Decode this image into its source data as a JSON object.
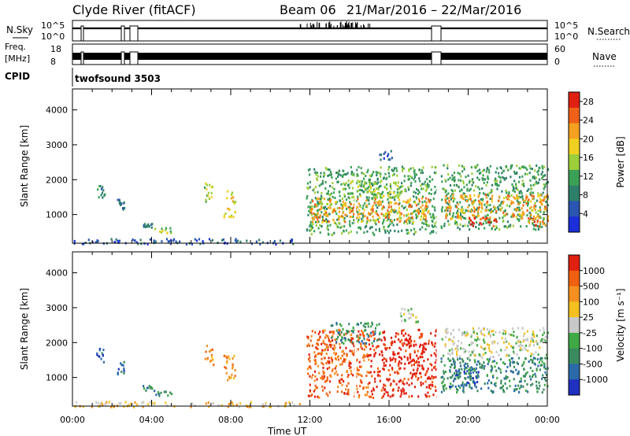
{
  "header": {
    "station": "Clyde River (fitACF)",
    "beam": "Beam 06",
    "date_range": "21/Mar/2016 – 22/Mar/2016"
  },
  "top_panels": {
    "nsky_label": "N.Sky",
    "nsky_ticks": [
      "10^5",
      "10^0"
    ],
    "nsearch_label": "N.Search",
    "nsearch_ticks": [
      "10^5",
      "10^0"
    ],
    "freq_label": "Freq.",
    "freq_unit": "[MHz]",
    "freq_ticks": [
      "18",
      "8"
    ],
    "nave_label": "Nave",
    "nave_ticks": [
      "60",
      "0"
    ],
    "cpid_label": "CPID",
    "cpid_value": "twofsound 3503"
  },
  "chart_data": [
    {
      "type": "heatmap",
      "name": "power",
      "xlabel": "Time UT",
      "ylabel": "Slant Range [km]",
      "x_ticks": [
        "00:00",
        "04:00",
        "08:00",
        "12:00",
        "16:00",
        "20:00",
        "00:00"
      ],
      "xlim_hours": [
        0,
        24
      ],
      "y_ticks": [
        1000,
        2000,
        3000,
        4000
      ],
      "ylim": [
        180,
        4600
      ],
      "colorbar": {
        "label": "Power [dB]",
        "ticks": [
          4,
          8,
          12,
          16,
          20,
          24,
          28
        ],
        "range": [
          0,
          30
        ],
        "colors": [
          "#1a2fd9",
          "#2a55b0",
          "#2e7f6a",
          "#3aa055",
          "#9ccf3a",
          "#f0d020",
          "#f5a020",
          "#f06018",
          "#e02010"
        ]
      },
      "regions": [
        {
          "t0": 1.2,
          "t1": 1.6,
          "r0": 1450,
          "r1": 1850,
          "level": 2
        },
        {
          "t0": 2.2,
          "t1": 2.6,
          "r0": 1100,
          "r1": 1500,
          "level": 2
        },
        {
          "t0": 3.5,
          "t1": 4.0,
          "r0": 650,
          "r1": 800,
          "level": 2
        },
        {
          "t0": 4.1,
          "t1": 5.0,
          "r0": 500,
          "r1": 700,
          "level": 4
        },
        {
          "t0": 6.6,
          "t1": 7.1,
          "r0": 1350,
          "r1": 1950,
          "level": 4
        },
        {
          "t0": 7.6,
          "t1": 8.2,
          "r0": 950,
          "r1": 1700,
          "level": 5
        },
        {
          "t0": 0.0,
          "t1": 11.5,
          "r0": 180,
          "r1": 330,
          "level": 1
        },
        {
          "t0": 11.8,
          "t1": 18.4,
          "r0": 450,
          "r1": 2400,
          "level": 3
        },
        {
          "t0": 12.0,
          "t1": 18.0,
          "r0": 800,
          "r1": 1500,
          "level": 6
        },
        {
          "t0": 13.5,
          "t1": 16.5,
          "r0": 1500,
          "r1": 2000,
          "level": 4
        },
        {
          "t0": 15.5,
          "t1": 16.2,
          "r0": 2600,
          "r1": 2900,
          "level": 1
        },
        {
          "t0": 18.6,
          "t1": 24.0,
          "r0": 600,
          "r1": 2450,
          "level": 3
        },
        {
          "t0": 18.8,
          "t1": 24.0,
          "r0": 900,
          "r1": 1600,
          "level": 6
        },
        {
          "t0": 20.0,
          "t1": 21.5,
          "r0": 700,
          "r1": 950,
          "level": 8
        },
        {
          "t0": 23.0,
          "t1": 24.0,
          "r0": 700,
          "r1": 1000,
          "level": 7
        }
      ]
    },
    {
      "type": "heatmap",
      "name": "velocity",
      "xlabel": "Time UT",
      "ylabel": "Slant Range [km]",
      "x_ticks": [
        "00:00",
        "04:00",
        "08:00",
        "12:00",
        "16:00",
        "20:00",
        "00:00"
      ],
      "xlim_hours": [
        0,
        24
      ],
      "y_ticks": [
        1000,
        2000,
        3000,
        4000
      ],
      "ylim": [
        180,
        4600
      ],
      "colorbar": {
        "label": "Velocity [m s⁻¹]",
        "ticks": [
          "1000",
          "500",
          "100",
          "25",
          "-25",
          "-100",
          "-500",
          "-1000"
        ],
        "colors": [
          "#2030c0",
          "#2a6aa8",
          "#3a8a60",
          "#3faa45",
          "#c8c8c8",
          "#f5c020",
          "#f59020",
          "#f06010",
          "#e02010"
        ]
      },
      "regions": [
        {
          "t0": 1.2,
          "t1": 1.6,
          "r0": 1450,
          "r1": 1850,
          "level": 1
        },
        {
          "t0": 2.2,
          "t1": 2.6,
          "r0": 1100,
          "r1": 1500,
          "level": 1
        },
        {
          "t0": 3.5,
          "t1": 4.0,
          "r0": 650,
          "r1": 800,
          "level": 2
        },
        {
          "t0": 4.1,
          "t1": 5.0,
          "r0": 500,
          "r1": 700,
          "level": 2
        },
        {
          "t0": 6.6,
          "t1": 7.1,
          "r0": 1350,
          "r1": 1950,
          "level": 6
        },
        {
          "t0": 7.6,
          "t1": 8.2,
          "r0": 950,
          "r1": 1700,
          "level": 6
        },
        {
          "t0": 0.0,
          "t1": 11.5,
          "r0": 180,
          "r1": 330,
          "level": 5
        },
        {
          "t0": 11.8,
          "t1": 15.0,
          "r0": 450,
          "r1": 2400,
          "level": 7
        },
        {
          "t0": 15.0,
          "t1": 18.4,
          "r0": 450,
          "r1": 2400,
          "level": 8
        },
        {
          "t0": 13.0,
          "t1": 15.5,
          "r0": 2000,
          "r1": 2600,
          "level": 2
        },
        {
          "t0": 16.5,
          "t1": 17.5,
          "r0": 2600,
          "r1": 3000,
          "level": 4
        },
        {
          "t0": 18.6,
          "t1": 24.0,
          "r0": 600,
          "r1": 1600,
          "level": 2
        },
        {
          "t0": 19.0,
          "t1": 20.5,
          "r0": 700,
          "r1": 1500,
          "level": 1
        },
        {
          "t0": 18.6,
          "t1": 24.0,
          "r0": 1600,
          "r1": 2450,
          "level": 4
        }
      ]
    }
  ]
}
